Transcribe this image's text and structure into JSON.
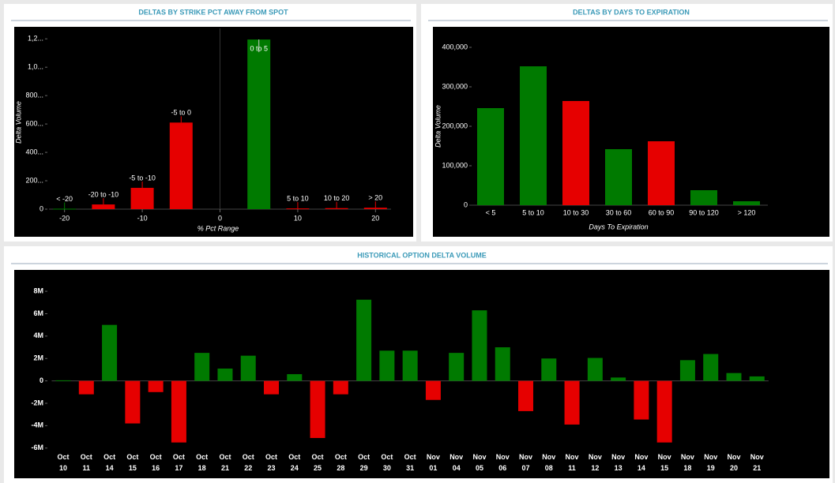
{
  "chart_data": [
    {
      "type": "bar",
      "title": "DELTAS BY STRIKE PCT AWAY FROM SPOT",
      "xlabel": "% Pct Range",
      "ylabel": "Delta Volume",
      "categories": [
        "< -20",
        "-20 to -10",
        "-5 to -10",
        "-5 to 0",
        "0 to 5",
        "5 to 10",
        "10 to 20",
        "> 20"
      ],
      "x": [
        -20,
        -15,
        -10,
        -5,
        5,
        10,
        15,
        20
      ],
      "values": [
        3,
        33,
        150,
        610,
        1195,
        5,
        7,
        10
      ],
      "colors": [
        "#007a00",
        "#e60000",
        "#e60000",
        "#e60000",
        "#007a00",
        "#e60000",
        "#e60000",
        "#e60000"
      ],
      "xlim": [
        -22,
        22
      ],
      "xticks": [
        -20,
        -10,
        0,
        10,
        20
      ],
      "ylim": [
        0,
        1240
      ],
      "yticks": [
        0,
        {
          "value": 200,
          "label": "200..."
        },
        {
          "value": 400,
          "label": "400..."
        },
        {
          "value": 600,
          "label": "600..."
        },
        {
          "value": 800,
          "label": "800..."
        },
        {
          "value": 1000,
          "label": "1,0..."
        },
        {
          "value": 1200,
          "label": "1,2..."
        }
      ]
    },
    {
      "type": "bar",
      "title": "DELTAS BY DAYS TO EXPIRATION",
      "xlabel": "Days To Expiration",
      "ylabel": "Delta Volume",
      "categories": [
        "< 5",
        "5 to 10",
        "10 to 30",
        "30 to 60",
        "60 to 90",
        "90 to 120",
        "> 120"
      ],
      "values": [
        246000,
        352000,
        264000,
        142000,
        162000,
        38000,
        10000
      ],
      "colors": [
        "#007a00",
        "#007a00",
        "#e60000",
        "#007a00",
        "#e60000",
        "#007a00",
        "#007a00"
      ],
      "ylim": [
        0,
        420000
      ],
      "yticks": [
        0,
        {
          "value": 100000,
          "label": "100,000"
        },
        {
          "value": 200000,
          "label": "200,000"
        },
        {
          "value": 300000,
          "label": "300,000"
        },
        {
          "value": 400000,
          "label": "400,000"
        }
      ]
    },
    {
      "type": "bar",
      "title": "HISTORICAL OPTION DELTA VOLUME",
      "categories": [
        "Oct 10",
        "Oct 11",
        "Oct 14",
        "Oct 15",
        "Oct 16",
        "Oct 17",
        "Oct 18",
        "Oct 21",
        "Oct 22",
        "Oct 23",
        "Oct 24",
        "Oct 25",
        "Oct 28",
        "Oct 29",
        "Oct 30",
        "Oct 31",
        "Nov 01",
        "Nov 04",
        "Nov 05",
        "Nov 06",
        "Nov 07",
        "Nov 08",
        "Nov 11",
        "Nov 12",
        "Nov 13",
        "Nov 14",
        "Nov 15",
        "Nov 18",
        "Nov 19",
        "Nov 20",
        "Nov 21"
      ],
      "values": [
        50000,
        -1200000,
        5000000,
        -3800000,
        -1000000,
        -5500000,
        2500000,
        1100000,
        2250000,
        -1200000,
        600000,
        -5100000,
        -1200000,
        7250000,
        2700000,
        2700000,
        -1700000,
        2500000,
        6300000,
        3000000,
        -2700000,
        2000000,
        -3900000,
        2050000,
        300000,
        -3450000,
        -5500000,
        1850000,
        2400000,
        700000,
        400000
      ],
      "positive_color": "#007a00",
      "negative_color": "#e60000",
      "ylim": [
        -6300000,
        8500000
      ],
      "yticks": [
        {
          "value": -6000000,
          "label": "-6M"
        },
        {
          "value": -4000000,
          "label": "-4M"
        },
        {
          "value": -2000000,
          "label": "-2M"
        },
        0,
        {
          "value": 2000000,
          "label": "2M"
        },
        {
          "value": 4000000,
          "label": "4M"
        },
        {
          "value": 6000000,
          "label": "6M"
        },
        {
          "value": 8000000,
          "label": "8M"
        }
      ]
    }
  ]
}
